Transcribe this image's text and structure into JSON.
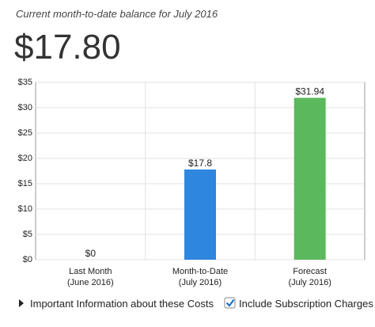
{
  "header": {
    "subtitle": "Current month-to-date balance for July 2016",
    "balance": "$17.80"
  },
  "chart_data": {
    "type": "bar",
    "categories": [
      [
        "Last Month",
        "(June 2016)"
      ],
      [
        "Month-to-Date",
        "(July 2016)"
      ],
      [
        "Forecast",
        "(July 2016)"
      ]
    ],
    "values": [
      0,
      17.8,
      31.94
    ],
    "value_labels": [
      "$0",
      "$17.8",
      "$31.94"
    ],
    "colors": [
      "#2e86de",
      "#2e86de",
      "#5cb85c"
    ],
    "ylim": [
      0,
      35
    ],
    "yticks": [
      {
        "value": 0,
        "label": "$0"
      },
      {
        "value": 5,
        "label": "$5"
      },
      {
        "value": 10,
        "label": "$10"
      },
      {
        "value": 15,
        "label": "$15"
      },
      {
        "value": 20,
        "label": "$20"
      },
      {
        "value": 25,
        "label": "$25"
      },
      {
        "value": 30,
        "label": "$30"
      },
      {
        "value": 35,
        "label": "$35"
      }
    ],
    "grid": true
  },
  "footer": {
    "info_link": "Important Information about these Costs",
    "checkbox_label": "Include Subscription Charges",
    "checkbox_checked": true
  }
}
